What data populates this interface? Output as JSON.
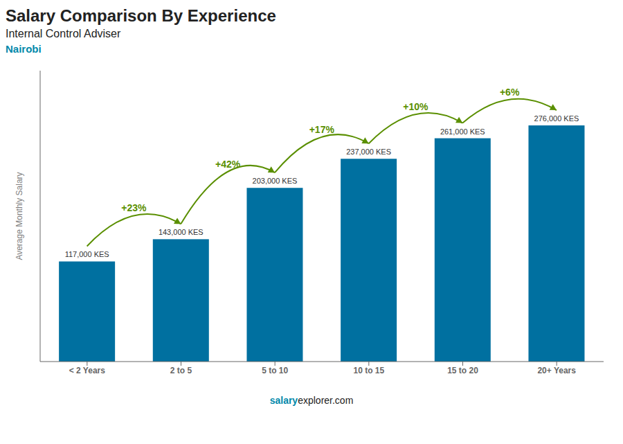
{
  "chart_data": {
    "type": "bar",
    "title": "Salary Comparison By Experience",
    "subtitle": "Internal Control Adviser",
    "annotations": [
      "Nairobi",
      "salary",
      "explorer.com"
    ],
    "y_label": "Average Monthly Salary",
    "categories": [
      "< 2 Years",
      "2 to 5",
      "5 to 10",
      "10 to 15",
      "15 to 20",
      "20+ Years"
    ],
    "values": [
      117000,
      143000,
      203000,
      237000,
      261000,
      276000
    ],
    "value_labels": [
      "117,000 KES",
      "143,000 KES",
      "203,000 KES",
      "237,000 KES",
      "261,000 KES",
      "276,000 KES"
    ],
    "pct_labels": [
      "+23%",
      "+42%",
      "+17%",
      "+10%",
      "+6%"
    ],
    "color": "#0070a0",
    "ylim": [
      0,
      340000
    ],
    "data_labels": true,
    "tick_labels": "x",
    "grid": false
  }
}
